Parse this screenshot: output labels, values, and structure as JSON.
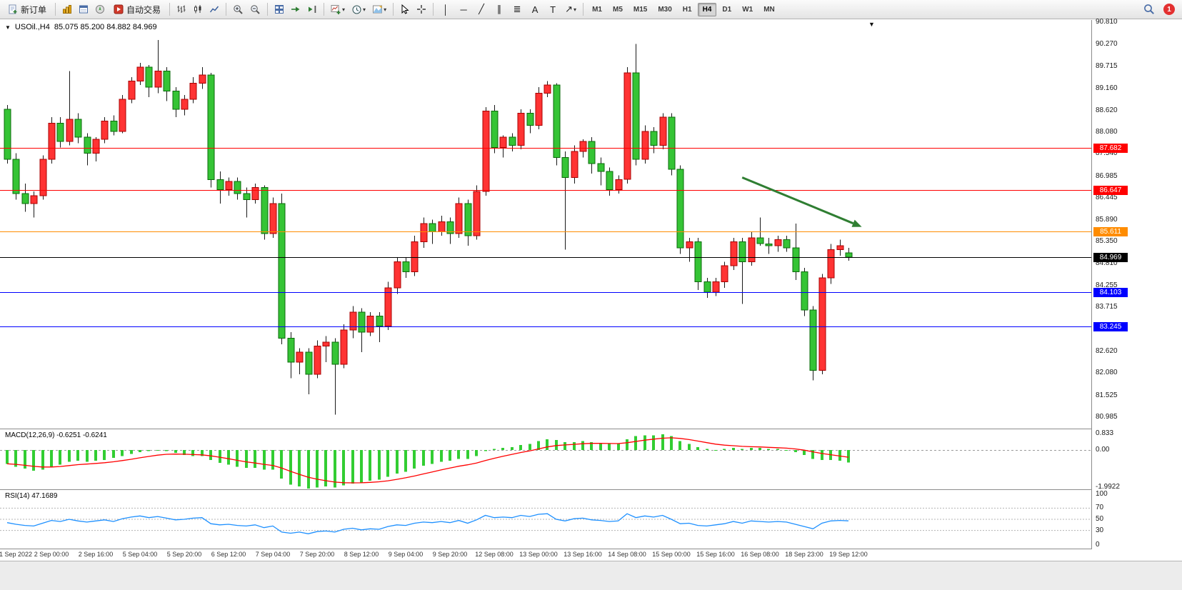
{
  "toolbar": {
    "new_order": "新订单",
    "autotrading": "自动交易",
    "notification_count": "1",
    "timeframes": [
      "M1",
      "M5",
      "M15",
      "M30",
      "H1",
      "H4",
      "D1",
      "W1",
      "MN"
    ],
    "active_timeframe": "H4",
    "draw_tools": [
      {
        "name": "vertical-line-tool",
        "glyph": "│"
      },
      {
        "name": "horizontal-line-tool",
        "glyph": "─"
      },
      {
        "name": "trendline-tool",
        "glyph": "╱"
      },
      {
        "name": "equidistant-channel-tool",
        "glyph": "∥"
      },
      {
        "name": "fibonacci-tool",
        "glyph": "≣"
      },
      {
        "name": "text-tool",
        "glyph": "A"
      },
      {
        "name": "text-label-tool",
        "glyph": "T"
      },
      {
        "name": "arrows-tool",
        "glyph": "↗"
      }
    ],
    "icons": {
      "new-order-icon": "order-ticket",
      "market-watch-icon": "gold-columns",
      "data-window-icon": "blue-window",
      "navigator-icon": "compass",
      "autotrading-icon": "red-play",
      "bar-chart-icon": "ohlc-bars",
      "candlestick-icon": "candles",
      "line-chart-icon": "zigzag-line",
      "zoom-in-icon": "magnifier-plus",
      "zoom-out-icon": "magnifier-minus",
      "tile-windows-icon": "window-grid",
      "auto-scroll-icon": "green-arrow-right",
      "chart-shift-icon": "green-arrow-to-bar",
      "indicators-icon": "chart-plus",
      "periods-icon": "clock",
      "templates-icon": "template-frame",
      "cursor-icon": "pointer",
      "crosshair-icon": "crosshair",
      "search-icon": "magnifier",
      "notification-icon": "red-badge"
    }
  },
  "chart_header": {
    "symbol_period": "USOil.,H4",
    "ohlc": "85.075 85.200 84.882 84.969"
  },
  "indicators": {
    "macd_label": "MACD(12,26,9) -0.6251 -0.6241",
    "rsi_label": "RSI(14) 47.1689"
  },
  "chart_data": {
    "type": "candlestick",
    "symbol": "USOil.",
    "timeframe": "H4",
    "current": {
      "open": 85.075,
      "high": 85.2,
      "low": 84.882,
      "close": 84.969
    },
    "colors": {
      "up": "#FF3333",
      "up_border": "#A80000",
      "down": "#35C435",
      "down_border": "#0A6A0A",
      "wick": "#1A1A1A"
    },
    "main": {
      "ylim": [
        80.7,
        90.87
      ],
      "axis_ticks": [
        "90.810",
        "90.270",
        "89.715",
        "89.160",
        "88.620",
        "88.080",
        "87.540",
        "86.985",
        "86.445",
        "85.890",
        "85.350",
        "84.810",
        "84.255",
        "83.715",
        "83.160",
        "82.620",
        "82.080",
        "81.525",
        "80.985"
      ],
      "levels": [
        {
          "price": 87.682,
          "label": "87.682",
          "color": "#FF0000"
        },
        {
          "price": 86.647,
          "label": "86.647",
          "color": "#FF0000"
        },
        {
          "price": 85.611,
          "label": "85.611",
          "color": "#FF8C00"
        },
        {
          "price": 84.969,
          "label": "84.969",
          "color": "#000000"
        },
        {
          "price": 84.103,
          "label": "84.103",
          "color": "#0000FF"
        },
        {
          "price": 83.245,
          "label": "83.245",
          "color": "#0000FF"
        }
      ],
      "annotation": {
        "type": "arrow",
        "color": "#2F7E32",
        "from": {
          "index": 83,
          "price": 86.95
        },
        "to": {
          "index": 96.5,
          "price": 85.72
        }
      },
      "candles": [
        [
          88.65,
          88.75,
          87.3,
          87.4
        ],
        [
          87.4,
          87.55,
          86.4,
          86.55
        ],
        [
          86.55,
          86.8,
          86.1,
          86.3
        ],
        [
          86.3,
          86.6,
          85.95,
          86.5
        ],
        [
          86.5,
          87.5,
          86.4,
          87.4
        ],
        [
          87.4,
          88.45,
          87.3,
          88.3
        ],
        [
          88.3,
          88.45,
          87.7,
          87.85
        ],
        [
          87.85,
          89.6,
          87.75,
          88.4
        ],
        [
          88.4,
          88.55,
          87.8,
          87.95
        ],
        [
          87.95,
          88.05,
          87.25,
          87.55
        ],
        [
          87.55,
          87.95,
          87.35,
          87.9
        ],
        [
          87.9,
          88.45,
          87.8,
          88.35
        ],
        [
          88.35,
          88.5,
          88.0,
          88.1
        ],
        [
          88.1,
          89.0,
          88.05,
          88.9
        ],
        [
          88.9,
          89.45,
          88.8,
          89.35
        ],
        [
          89.35,
          89.8,
          89.25,
          89.7
        ],
        [
          89.7,
          89.75,
          88.95,
          89.2
        ],
        [
          89.2,
          90.37,
          89.05,
          89.6
        ],
        [
          89.6,
          89.7,
          88.85,
          89.1
        ],
        [
          89.1,
          89.2,
          88.45,
          88.65
        ],
        [
          88.65,
          89.0,
          88.5,
          88.9
        ],
        [
          88.9,
          89.45,
          88.8,
          89.3
        ],
        [
          89.3,
          89.7,
          89.15,
          89.5
        ],
        [
          89.5,
          89.55,
          86.7,
          86.9
        ],
        [
          86.9,
          87.1,
          86.3,
          86.65
        ],
        [
          86.65,
          86.95,
          86.5,
          86.85
        ],
        [
          86.85,
          86.95,
          86.4,
          86.55
        ],
        [
          86.55,
          86.7,
          85.95,
          86.4
        ],
        [
          86.4,
          86.8,
          86.3,
          86.7
        ],
        [
          86.7,
          86.75,
          85.4,
          85.55
        ],
        [
          85.55,
          86.45,
          85.45,
          86.3
        ],
        [
          86.3,
          86.55,
          82.8,
          82.95
        ],
        [
          82.95,
          83.1,
          81.95,
          82.35
        ],
        [
          82.35,
          82.7,
          82.05,
          82.6
        ],
        [
          82.6,
          82.7,
          81.55,
          82.05
        ],
        [
          82.05,
          82.9,
          81.95,
          82.75
        ],
        [
          82.75,
          83.0,
          82.35,
          82.85
        ],
        [
          82.85,
          82.95,
          81.05,
          82.3
        ],
        [
          82.3,
          83.3,
          82.2,
          83.15
        ],
        [
          83.15,
          83.75,
          82.95,
          83.6
        ],
        [
          83.6,
          83.7,
          82.6,
          83.1
        ],
        [
          83.1,
          83.6,
          83.0,
          83.5
        ],
        [
          83.5,
          83.6,
          82.85,
          83.25
        ],
        [
          83.25,
          84.35,
          83.15,
          84.2
        ],
        [
          84.2,
          84.95,
          84.05,
          84.85
        ],
        [
          84.85,
          84.95,
          84.45,
          84.6
        ],
        [
          84.6,
          85.5,
          84.5,
          85.35
        ],
        [
          85.35,
          85.95,
          85.2,
          85.8
        ],
        [
          85.8,
          85.9,
          85.3,
          85.6
        ],
        [
          85.6,
          86.0,
          85.5,
          85.85
        ],
        [
          85.85,
          85.95,
          85.3,
          85.55
        ],
        [
          85.55,
          86.45,
          85.45,
          86.3
        ],
        [
          86.3,
          86.4,
          85.25,
          85.5
        ],
        [
          85.5,
          86.75,
          85.4,
          86.6
        ],
        [
          86.6,
          88.7,
          86.5,
          88.6
        ],
        [
          88.6,
          88.75,
          87.55,
          87.7
        ],
        [
          87.7,
          88.0,
          87.45,
          87.95
        ],
        [
          87.95,
          88.05,
          87.6,
          87.75
        ],
        [
          87.75,
          88.65,
          87.65,
          88.55
        ],
        [
          88.55,
          88.65,
          88.05,
          88.25
        ],
        [
          88.25,
          89.2,
          88.15,
          89.05
        ],
        [
          89.05,
          89.35,
          88.95,
          89.25
        ],
        [
          89.25,
          89.3,
          87.25,
          87.45
        ],
        [
          87.45,
          87.6,
          85.15,
          86.95
        ],
        [
          86.95,
          87.75,
          86.8,
          87.6
        ],
        [
          87.6,
          87.9,
          87.45,
          87.85
        ],
        [
          87.85,
          87.95,
          87.05,
          87.3
        ],
        [
          87.3,
          87.45,
          86.75,
          87.1
        ],
        [
          87.1,
          87.2,
          86.5,
          86.65
        ],
        [
          86.65,
          87.0,
          86.55,
          86.9
        ],
        [
          86.9,
          89.7,
          86.8,
          89.55
        ],
        [
          89.55,
          90.27,
          87.25,
          87.4
        ],
        [
          87.4,
          88.25,
          87.3,
          88.1
        ],
        [
          88.1,
          88.2,
          87.55,
          87.75
        ],
        [
          87.75,
          88.55,
          87.65,
          88.45
        ],
        [
          88.45,
          88.55,
          87.0,
          87.15
        ],
        [
          87.15,
          87.25,
          85.05,
          85.2
        ],
        [
          85.2,
          85.45,
          84.85,
          85.35
        ],
        [
          85.35,
          85.45,
          84.15,
          84.35
        ],
        [
          84.35,
          84.45,
          83.95,
          84.1
        ],
        [
          84.1,
          84.45,
          84.0,
          84.35
        ],
        [
          84.35,
          84.85,
          84.2,
          84.75
        ],
        [
          84.75,
          85.45,
          84.65,
          85.35
        ],
        [
          85.35,
          85.45,
          83.8,
          84.85
        ],
        [
          84.85,
          85.6,
          84.75,
          85.45
        ],
        [
          85.45,
          85.95,
          85.25,
          85.3
        ],
        [
          85.3,
          85.45,
          85.05,
          85.25
        ],
        [
          85.25,
          85.5,
          85.1,
          85.4
        ],
        [
          85.4,
          85.5,
          85.1,
          85.2
        ],
        [
          85.2,
          85.8,
          84.4,
          84.6
        ],
        [
          84.6,
          84.7,
          83.5,
          83.65
        ],
        [
          83.65,
          83.75,
          81.9,
          82.15
        ],
        [
          82.15,
          84.55,
          82.05,
          84.45
        ],
        [
          84.45,
          85.3,
          84.3,
          85.15
        ],
        [
          85.15,
          85.4,
          85.0,
          85.25
        ],
        [
          85.075,
          85.2,
          84.882,
          84.969
        ]
      ]
    },
    "macd": {
      "label": "MACD(12,26,9) -0.6251 -0.6241",
      "main_last": -0.6251,
      "signal_last": -0.6241,
      "ylim": [
        -1.99,
        1.05
      ],
      "hist_color": "#32CD32",
      "signal_color": "#FF0000",
      "axis_ticks": [
        {
          "v": 0.833,
          "label": "0.833"
        },
        {
          "v": 0.0,
          "label": "0.00"
        },
        {
          "v": -1.9922,
          "label": "-1.9922"
        }
      ],
      "values": [
        -0.7,
        -0.85,
        -0.95,
        -1.05,
        -1.0,
        -0.85,
        -0.75,
        -0.6,
        -0.55,
        -0.6,
        -0.55,
        -0.5,
        -0.4,
        -0.3,
        -0.2,
        -0.1,
        -0.05,
        0.0,
        -0.05,
        -0.15,
        -0.25,
        -0.3,
        -0.3,
        -0.5,
        -0.65,
        -0.75,
        -0.85,
        -0.9,
        -0.9,
        -1.0,
        -1.0,
        -1.45,
        -1.75,
        -1.85,
        -1.95,
        -1.9,
        -1.85,
        -1.9,
        -1.8,
        -1.7,
        -1.65,
        -1.55,
        -1.5,
        -1.35,
        -1.2,
        -1.1,
        -0.95,
        -0.8,
        -0.7,
        -0.6,
        -0.55,
        -0.45,
        -0.45,
        -0.3,
        -0.05,
        0.05,
        0.1,
        0.15,
        0.25,
        0.3,
        0.45,
        0.55,
        0.5,
        0.4,
        0.4,
        0.45,
        0.4,
        0.35,
        0.3,
        0.3,
        0.55,
        0.7,
        0.75,
        0.75,
        0.8,
        0.7,
        0.45,
        0.3,
        0.15,
        0.05,
        0.0,
        0.05,
        0.1,
        0.05,
        0.1,
        0.1,
        0.05,
        0.05,
        0.0,
        -0.1,
        -0.25,
        -0.45,
        -0.5,
        -0.5,
        -0.55,
        -0.6251
      ]
    },
    "rsi": {
      "label": "RSI(14) 47.1689",
      "period": 14,
      "last": 47.1689,
      "ylim": [
        0,
        100
      ],
      "levels": [
        70,
        50,
        30
      ],
      "line_color": "#1E90FF",
      "axis_ticks": [
        {
          "v": 100,
          "label": "100"
        },
        {
          "v": 70,
          "label": "70"
        },
        {
          "v": 50,
          "label": "50"
        },
        {
          "v": 30,
          "label": "30"
        },
        {
          "v": 0,
          "label": "0"
        }
      ],
      "values": [
        44,
        41,
        39,
        38,
        43,
        48,
        46,
        50,
        47,
        45,
        47,
        49,
        46,
        51,
        54,
        56,
        53,
        55,
        52,
        49,
        50,
        52,
        53,
        42,
        40,
        41,
        39,
        38,
        40,
        35,
        38,
        27,
        25,
        27,
        24,
        28,
        29,
        27,
        32,
        34,
        31,
        33,
        32,
        37,
        40,
        39,
        43,
        45,
        44,
        46,
        44,
        48,
        43,
        49,
        57,
        53,
        54,
        53,
        57,
        55,
        59,
        60,
        50,
        47,
        51,
        52,
        49,
        48,
        46,
        47,
        60,
        53,
        56,
        54,
        57,
        50,
        42,
        43,
        39,
        38,
        40,
        42,
        46,
        43,
        47,
        46,
        45,
        46,
        45,
        41,
        37,
        33,
        43,
        47,
        48,
        47.17
      ]
    },
    "time_labels": [
      "1 Sep 2022",
      "2 Sep 00:00",
      "2 Sep 16:00",
      "5 Sep 04:00",
      "5 Sep 20:00",
      "6 Sep 12:00",
      "7 Sep 04:00",
      "7 Sep 20:00",
      "8 Sep 12:00",
      "9 Sep 04:00",
      "9 Sep 20:00",
      "12 Sep 08:00",
      "13 Sep 00:00",
      "13 Sep 16:00",
      "14 Sep 08:00",
      "15 Sep 00:00",
      "15 Sep 16:00",
      "16 Sep 08:00",
      "18 Sep 23:00",
      "19 Sep 12:00"
    ]
  }
}
